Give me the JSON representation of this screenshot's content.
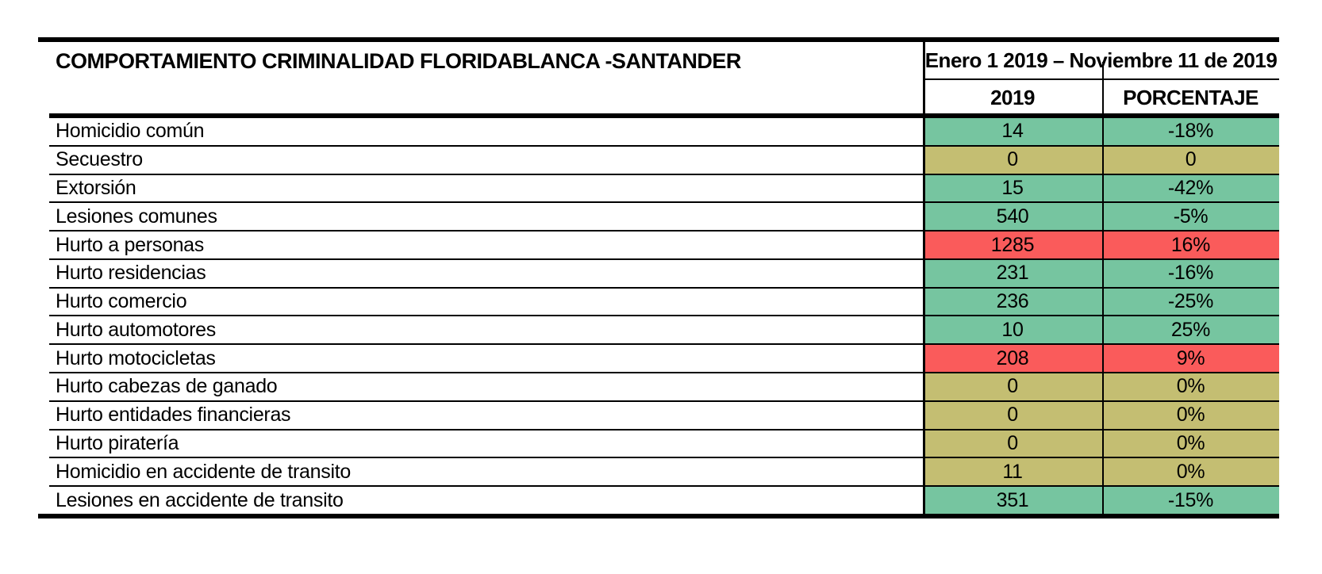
{
  "chart_data": {
    "type": "table",
    "title": "COMPORTAMIENTO CRIMINALIDAD FLORIDABLANCA -SANTANDER",
    "period_header": "Enero 1 2019 – Noviembre 11 de 2019",
    "columns": [
      "2019",
      "PORCENTAJE"
    ],
    "rows": [
      {
        "label": "Homicidio común",
        "value": "14",
        "pct": "-18%",
        "status": "green"
      },
      {
        "label": "Secuestro",
        "value": "0",
        "pct": "0",
        "status": "khaki"
      },
      {
        "label": "Extorsión",
        "value": "15",
        "pct": "-42%",
        "status": "green"
      },
      {
        "label": "Lesiones comunes",
        "value": "540",
        "pct": "-5%",
        "status": "green"
      },
      {
        "label": "Hurto a personas",
        "value": "1285",
        "pct": "16%",
        "status": "red"
      },
      {
        "label": "Hurto residencias",
        "value": "231",
        "pct": "-16%",
        "status": "green"
      },
      {
        "label": "Hurto comercio",
        "value": "236",
        "pct": "-25%",
        "status": "green"
      },
      {
        "label": "Hurto automotores",
        "value": "10",
        "pct": "25%",
        "status": "green"
      },
      {
        "label": "Hurto motocicletas",
        "value": "208",
        "pct": "9%",
        "status": "red"
      },
      {
        "label": "Hurto cabezas de ganado",
        "value": "0",
        "pct": "0%",
        "status": "khaki"
      },
      {
        "label": "Hurto entidades financieras",
        "value": "0",
        "pct": "0%",
        "status": "khaki"
      },
      {
        "label": "Hurto piratería",
        "value": "0",
        "pct": "0%",
        "status": "khaki"
      },
      {
        "label": "Homicidio en accidente de transito",
        "value": "11",
        "pct": "0%",
        "status": "khaki"
      },
      {
        "label": "Lesiones en accidente de transito",
        "value": "351",
        "pct": "-15%",
        "status": "green"
      }
    ],
    "status_colors": {
      "green": "#76C5A0",
      "khaki": "#C4BE72",
      "red": "#FA5B5B"
    },
    "border_color": "#000000"
  }
}
